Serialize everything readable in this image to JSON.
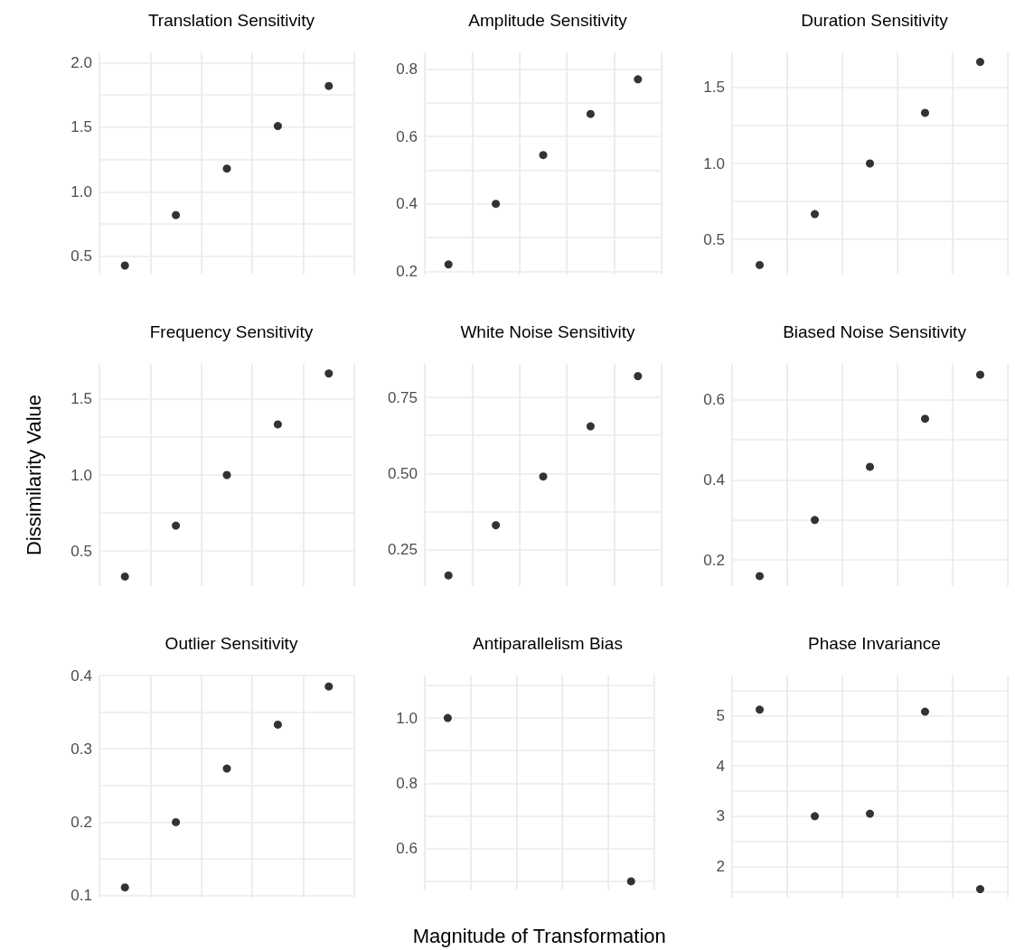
{
  "chart_data": [
    {
      "type": "scatter",
      "title": "Translation Sensitivity",
      "categories": [
        null,
        null,
        null,
        null,
        null
      ],
      "values": [
        0.43,
        0.82,
        1.18,
        1.51,
        1.82
      ],
      "color": "#000000",
      "marker": "circle",
      "grid": true,
      "tick_labels": "y",
      "ylim": [
        0.36,
        2.08
      ],
      "yticks": [
        0.5,
        {
          "value": 0.75,
          "label": null
        },
        {
          "value": 1,
          "label": "1.0"
        },
        {
          "value": 1.25,
          "label": null
        },
        1.5,
        {
          "value": 1.75,
          "label": null
        },
        {
          "value": 2,
          "label": "2.0"
        }
      ]
    },
    {
      "type": "scatter",
      "title": "Amplitude Sensitivity",
      "categories": [
        null,
        null,
        null,
        null,
        null
      ],
      "values": [
        0.22,
        0.4,
        0.545,
        0.667,
        0.77
      ],
      "color": "#000000",
      "marker": "circle",
      "grid": true,
      "tick_labels": "y",
      "ylim": [
        0.19,
        0.85
      ],
      "yticks": [
        0.2,
        {
          "value": 0.3,
          "label": null
        },
        0.4,
        {
          "value": 0.5,
          "label": null
        },
        0.6,
        {
          "value": 0.7,
          "label": null
        },
        0.8
      ]
    },
    {
      "type": "scatter",
      "title": "Duration Sensitivity",
      "categories": [
        null,
        null,
        null,
        null,
        null
      ],
      "values": [
        0.333,
        0.667,
        1.0,
        1.333,
        1.667
      ],
      "color": "#000000",
      "marker": "circle",
      "grid": true,
      "tick_labels": "y",
      "ylim": [
        0.27,
        1.73
      ],
      "yticks": [
        0.5,
        {
          "value": 0.75,
          "label": null
        },
        {
          "value": 1,
          "label": "1.0"
        },
        {
          "value": 1.25,
          "label": null
        },
        1.5
      ]
    },
    {
      "type": "scatter",
      "title": "Frequency Sensitivity",
      "ylabel": "Dissimilarity Value",
      "categories": [
        null,
        null,
        null,
        null,
        null
      ],
      "values": [
        0.333,
        0.667,
        1.0,
        1.333,
        1.667
      ],
      "color": "#000000",
      "marker": "circle",
      "grid": true,
      "tick_labels": "y",
      "ylim": [
        0.27,
        1.73
      ],
      "yticks": [
        0.5,
        {
          "value": 0.75,
          "label": null
        },
        {
          "value": 1,
          "label": "1.0"
        },
        {
          "value": 1.25,
          "label": null
        },
        1.5
      ]
    },
    {
      "type": "scatter",
      "title": "White Noise Sensitivity",
      "categories": [
        null,
        null,
        null,
        null,
        null
      ],
      "values": [
        0.165,
        0.33,
        0.49,
        0.655,
        0.82
      ],
      "color": "#000000",
      "marker": "circle",
      "grid": true,
      "tick_labels": "y",
      "ylim": [
        0.13,
        0.86
      ],
      "yticks": [
        0.25,
        {
          "value": 0.375,
          "label": null
        },
        {
          "value": 0.5,
          "label": "0.50"
        },
        {
          "value": 0.625,
          "label": null
        },
        0.75
      ]
    },
    {
      "type": "scatter",
      "title": "Biased Noise Sensitivity",
      "categories": [
        null,
        null,
        null,
        null,
        null
      ],
      "values": [
        0.16,
        0.3,
        0.433,
        0.553,
        0.663
      ],
      "color": "#000000",
      "marker": "circle",
      "grid": true,
      "tick_labels": "y",
      "ylim": [
        0.135,
        0.69
      ],
      "yticks": [
        0.2,
        {
          "value": 0.3,
          "label": null
        },
        0.4,
        {
          "value": 0.5,
          "label": null
        },
        0.6
      ]
    },
    {
      "type": "scatter",
      "title": "Outlier Sensitivity",
      "categories": [
        null,
        null,
        null,
        null,
        null
      ],
      "values": [
        0.111,
        0.2,
        0.273,
        0.333,
        0.385
      ],
      "color": "#000000",
      "marker": "circle",
      "grid": true,
      "tick_labels": "y",
      "ylim": [
        0.097,
        0.4
      ],
      "yticks": [
        0.1,
        {
          "value": 0.15,
          "label": null
        },
        0.2,
        {
          "value": 0.25,
          "label": null
        },
        0.3,
        {
          "value": 0.35,
          "label": null
        },
        0.4
      ]
    },
    {
      "type": "scatter",
      "title": "Antiparallelism Bias",
      "xlabel": "Magnitude of Transformation",
      "categories": [
        null,
        null,
        null,
        null,
        null
      ],
      "values": [
        1.0,
        null,
        null,
        null,
        0.5
      ],
      "color": "#000000",
      "marker": "circle",
      "grid": true,
      "tick_labels": "y",
      "ylim": [
        0.475,
        1.13
      ],
      "yticks": [
        {
          "value": 0.5,
          "label": null
        },
        0.6,
        {
          "value": 0.7,
          "label": null
        },
        0.8,
        {
          "value": 0.9,
          "label": null
        },
        {
          "value": 1,
          "label": "1.0"
        },
        {
          "value": 1.1,
          "label": null
        }
      ]
    },
    {
      "type": "scatter",
      "title": "Phase Invariance",
      "categories": [
        null,
        null,
        null,
        null,
        null
      ],
      "values": [
        5.12,
        3.0,
        3.05,
        5.08,
        1.55
      ],
      "color": "#000000",
      "marker": "circle",
      "grid": true,
      "tick_labels": "y",
      "ylim": [
        1.38,
        5.8
      ],
      "yticks": [
        {
          "value": 1.5,
          "label": null
        },
        2,
        {
          "value": 2.5,
          "label": null
        },
        3,
        {
          "value": 3.5,
          "label": null
        },
        4,
        {
          "value": 4.5,
          "label": null
        },
        5,
        {
          "value": 5.5,
          "label": null
        }
      ]
    }
  ]
}
